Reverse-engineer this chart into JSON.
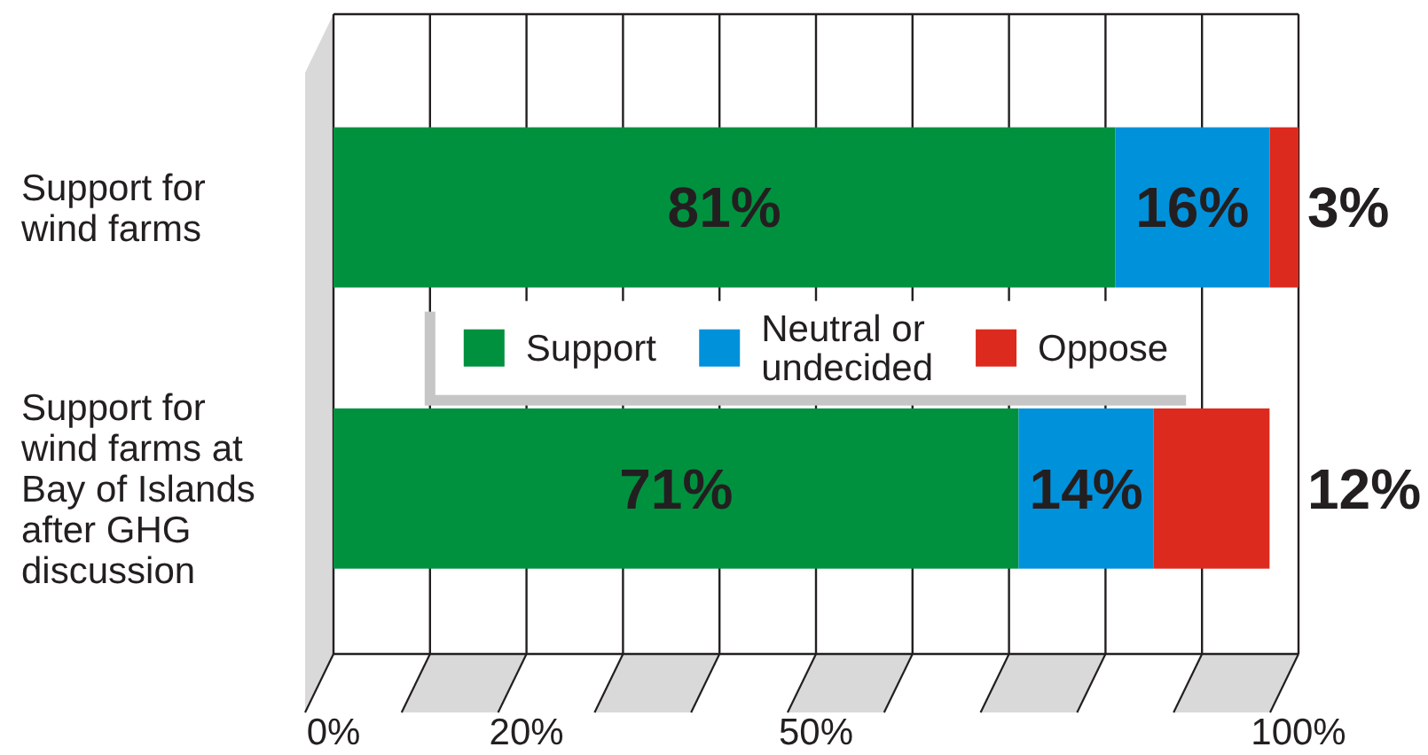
{
  "chart_data": {
    "type": "bar",
    "orientation": "horizontal",
    "stacked": true,
    "categories": [
      "Support for wind farms",
      "Support for wind farms at Bay of Islands after GHG discussion"
    ],
    "series": [
      {
        "name": "Support",
        "color": "#00913f",
        "values": [
          81,
          71
        ],
        "value_labels": [
          "81%",
          "71%"
        ]
      },
      {
        "name": "Neutral or undecided",
        "color": "#0091db",
        "values": [
          16,
          14
        ],
        "value_labels": [
          "16%",
          "14%"
        ]
      },
      {
        "name": "Oppose",
        "color": "#dc2a1f",
        "values": [
          3,
          12
        ],
        "value_labels": [
          "3%",
          "12%"
        ]
      }
    ],
    "xlim": [
      0,
      100
    ],
    "xticks": [
      {
        "value": 0,
        "label": "0%"
      },
      {
        "value": 10,
        "label": null
      },
      {
        "value": 20,
        "label": "20%"
      },
      {
        "value": 30,
        "label": null
      },
      {
        "value": 40,
        "label": null
      },
      {
        "value": 50,
        "label": "50%"
      },
      {
        "value": 60,
        "label": null
      },
      {
        "value": 70,
        "label": null
      },
      {
        "value": 80,
        "label": null
      },
      {
        "value": 90,
        "label": null
      },
      {
        "value": 100,
        "label": "100%"
      }
    ],
    "grid": true,
    "legend": "center"
  }
}
